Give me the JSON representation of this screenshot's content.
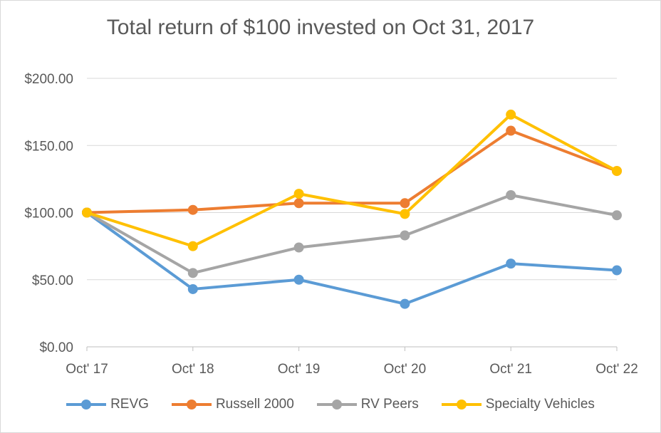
{
  "chart_data": {
    "type": "line",
    "title": "Total return of $100 invested on Oct 31, 2017",
    "categories": [
      "Oct' 17",
      "Oct' 18",
      "Oct' 19",
      "Oct' 20",
      "Oct' 21",
      "Oct' 22"
    ],
    "y_ticks": [
      "$0.00",
      "$50.00",
      "$100.00",
      "$150.00",
      "$200.00"
    ],
    "ylim": [
      0,
      200
    ],
    "grid": true,
    "legend_position": "bottom",
    "series": [
      {
        "name": "REVG",
        "color": "#5b9bd5",
        "values": [
          100,
          43,
          50,
          32,
          62,
          57
        ]
      },
      {
        "name": "Russell 2000",
        "color": "#ed7d31",
        "values": [
          100,
          102,
          107,
          107,
          161,
          131
        ]
      },
      {
        "name": "RV Peers",
        "color": "#a5a5a5",
        "values": [
          100,
          55,
          74,
          83,
          113,
          98
        ]
      },
      {
        "name": "Specialty Vehicles",
        "color": "#ffc000",
        "values": [
          100,
          75,
          114,
          99,
          173,
          131
        ]
      }
    ]
  }
}
